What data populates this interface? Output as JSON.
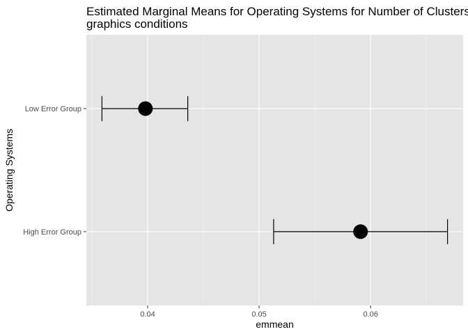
{
  "chart_data": {
    "type": "scatter",
    "title_lines": [
      "Estimated Marginal Means for Operating Systems for Number of Clusters",
      "graphics conditions"
    ],
    "xlabel": "emmean",
    "ylabel": "Operating Systems",
    "xlim": [
      0.0345,
      0.0683
    ],
    "x_ticks": [
      0.04,
      0.05,
      0.06
    ],
    "x_tick_labels": [
      "0.04",
      "0.05",
      "0.06"
    ],
    "categories": [
      "High Error Group",
      "Low Error Group"
    ],
    "points": [
      {
        "category": "Low Error Group",
        "emmean": 0.0398,
        "lower": 0.0359,
        "upper": 0.0436
      },
      {
        "category": "High Error Group",
        "emmean": 0.0591,
        "lower": 0.0513,
        "upper": 0.0669
      }
    ],
    "grid": true,
    "legend": "none"
  },
  "colors": {
    "panel_background": "#e5e5e5",
    "grid_major": "#ffffff",
    "grid_minor": "#f2f2f2",
    "point": "#000000",
    "errorbar": "#000000",
    "tick": "#333333",
    "tick_label": "#4d4d4d"
  }
}
